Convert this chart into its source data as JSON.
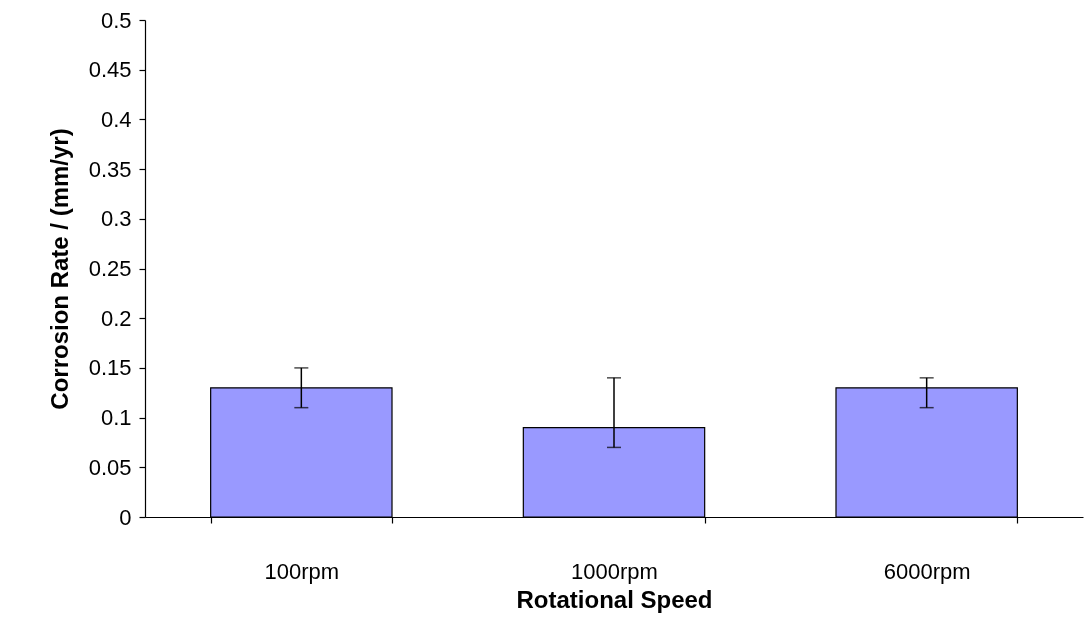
{
  "chart_data": {
    "type": "bar",
    "xlabel": "Rotational Speed",
    "ylabel": "Corrosion Rate / (mm/yr)",
    "categories": [
      "100rpm",
      "1000rpm",
      "6000rpm"
    ],
    "values": [
      0.13,
      0.09,
      0.13
    ],
    "errors": [
      [
        0.11,
        0.15
      ],
      [
        0.07,
        0.14
      ],
      [
        0.11,
        0.14
      ]
    ],
    "color": "#9999ff",
    "ylim": [
      0,
      0.5
    ],
    "yticks": [
      0,
      0.05,
      0.1,
      0.15,
      0.2,
      0.25,
      0.3,
      0.35,
      0.4,
      0.45,
      0.5
    ],
    "grid": false
  }
}
